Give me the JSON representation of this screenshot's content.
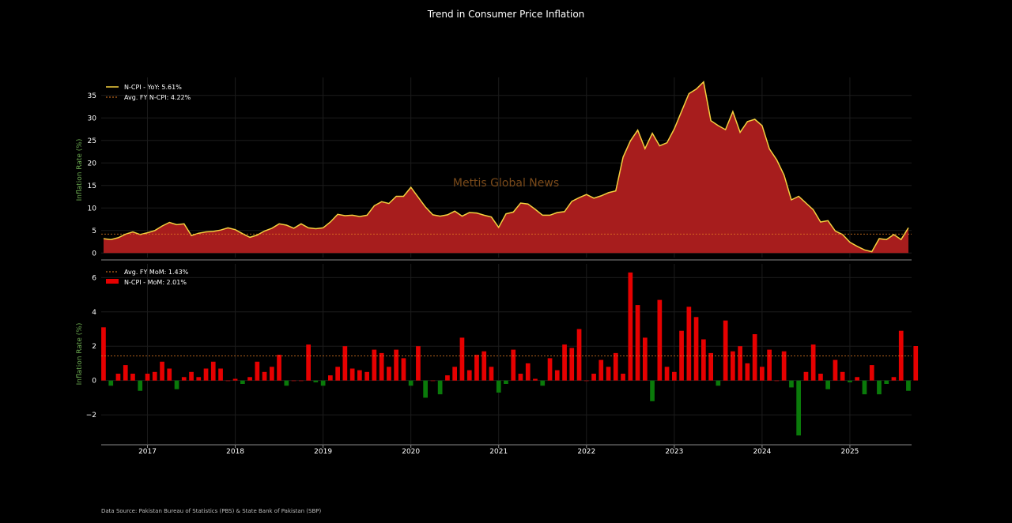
{
  "chart_data": [
    {
      "type": "area",
      "title": "Trend in Consumer Price Inflation",
      "ylabel": "Inflation Rate (%)",
      "ylim": [
        -1,
        39
      ],
      "yticks": [
        0,
        5,
        10,
        15,
        20,
        25,
        30,
        35
      ],
      "legend_position": "top-left",
      "grid": true,
      "x_start": "2016-07",
      "x_frequency": "monthly",
      "series": [
        {
          "name": "N-CPI - YoY: 5.61%",
          "color": "#f4d03f",
          "fill": "#a71d1d",
          "values": [
            3.2,
            3.0,
            3.4,
            4.2,
            4.7,
            4.1,
            4.5,
            5.0,
            6.0,
            6.8,
            6.3,
            6.5,
            3.9,
            4.4,
            4.7,
            4.8,
            5.1,
            5.6,
            5.2,
            4.3,
            3.5,
            4.0,
            4.9,
            5.5,
            6.5,
            6.2,
            5.5,
            6.5,
            5.6,
            5.4,
            5.6,
            6.9,
            8.6,
            8.3,
            8.4,
            8.1,
            8.4,
            10.5,
            11.4,
            11.0,
            12.6,
            12.6,
            14.6,
            12.4,
            10.2,
            8.5,
            8.2,
            8.5,
            9.3,
            8.2,
            9.0,
            8.9,
            8.4,
            8.0,
            5.7,
            8.7,
            9.1,
            11.1,
            10.9,
            9.7,
            8.4,
            8.4,
            9.0,
            9.2,
            11.5,
            12.3,
            13.0,
            12.2,
            12.7,
            13.4,
            13.8,
            21.3,
            24.9,
            27.3,
            23.2,
            26.6,
            23.8,
            24.5,
            27.6,
            31.5,
            35.4,
            36.4,
            38.0,
            29.4,
            28.3,
            27.4,
            31.4,
            26.8,
            29.2,
            29.7,
            28.3,
            23.1,
            20.7,
            17.3,
            11.8,
            12.6,
            11.1,
            9.6,
            6.9,
            7.2,
            4.9,
            4.1,
            2.4,
            1.5,
            0.7,
            0.3,
            3.2,
            3.0,
            4.1,
            3.0,
            5.61
          ]
        },
        {
          "name": "Avg. FY N-CPI: 4.22%",
          "color": "#e67e22",
          "style": "dashed",
          "value": 4.22
        }
      ]
    },
    {
      "type": "bar",
      "ylabel": "Inflation Rate (%)",
      "ylim": [
        -3.7,
        6.8
      ],
      "yticks": [
        -2,
        0,
        2,
        4,
        6
      ],
      "x_start": "2016-07",
      "x_frequency": "monthly",
      "x_tick_labels": [
        "2017",
        "2018",
        "2019",
        "2020",
        "2021",
        "2022",
        "2023",
        "2024",
        "2025"
      ],
      "legend_position": "top-left",
      "grid": true,
      "positive_color": "#e60000",
      "negative_color": "#0a7a0a",
      "series": [
        {
          "name": "Avg. FY MoM: 1.43%",
          "color": "#e67e22",
          "style": "dashed",
          "value": 1.43
        },
        {
          "name": "N-CPI - MoM: 2.01%",
          "color": "#e60000",
          "values": [
            3.1,
            -0.3,
            0.4,
            0.9,
            0.4,
            -0.6,
            0.4,
            0.5,
            1.1,
            0.7,
            -0.5,
            0.2,
            0.5,
            0.2,
            0.7,
            1.1,
            0.7,
            0.0,
            0.1,
            -0.2,
            0.2,
            1.1,
            0.5,
            0.8,
            1.5,
            -0.3,
            0.0,
            0.0,
            2.1,
            -0.1,
            -0.3,
            0.3,
            0.8,
            2.0,
            0.7,
            0.6,
            0.5,
            1.8,
            1.6,
            0.8,
            1.8,
            1.3,
            -0.3,
            2.0,
            -1.0,
            0.0,
            -0.8,
            0.3,
            0.8,
            2.5,
            0.6,
            1.5,
            1.7,
            0.8,
            -0.7,
            -0.2,
            1.8,
            0.4,
            1.0,
            0.1,
            -0.3,
            1.3,
            0.6,
            2.1,
            1.9,
            3.0,
            0.0,
            0.4,
            1.2,
            0.8,
            1.6,
            0.4,
            6.3,
            4.4,
            2.5,
            -1.2,
            4.7,
            0.8,
            0.5,
            2.9,
            4.3,
            3.7,
            2.4,
            1.6,
            -0.3,
            3.5,
            1.7,
            2.0,
            1.0,
            2.7,
            0.8,
            1.8,
            0.0,
            1.7,
            -0.4,
            -3.2,
            0.5,
            2.1,
            0.4,
            -0.5,
            1.2,
            0.5,
            -0.1,
            0.2,
            -0.8,
            0.9,
            -0.8,
            -0.2,
            0.2,
            2.9,
            -0.6,
            2.01
          ]
        }
      ]
    }
  ],
  "watermark": "Mettis Global News",
  "footer": {
    "source": "Data Source: Pakistan Bureau of Statistics (PBS) & State Bank of Pakistan (SBP)"
  }
}
